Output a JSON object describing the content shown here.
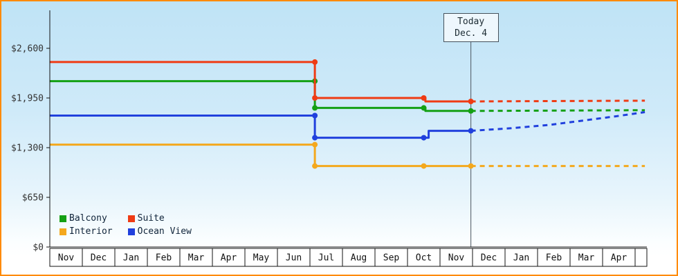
{
  "frame": {
    "border_color": "#ff8a00",
    "background_top": "#bfe3f6",
    "background_bottom": "#ffffff"
  },
  "chart_data": {
    "type": "line",
    "ylim": [
      0,
      2890
    ],
    "y_ticks": [
      {
        "value": 0,
        "label": "$0"
      },
      {
        "value": 650,
        "label": "$650"
      },
      {
        "value": 1300,
        "label": "$1,300"
      },
      {
        "value": 1950,
        "label": "$1,950"
      },
      {
        "value": 2600,
        "label": "$2,600"
      }
    ],
    "x_months": [
      "Nov",
      "Dec",
      "Jan",
      "Feb",
      "Mar",
      "Apr",
      "May",
      "Jun",
      "Jul",
      "Aug",
      "Sep",
      "Oct",
      "Nov",
      "Dec",
      "Jan",
      "Feb",
      "Mar",
      "Apr"
    ],
    "today": {
      "x": 12.95,
      "label_line1": "Today",
      "label_line2": "Dec. 4",
      "line_color": "#4a545e"
    },
    "series": [
      {
        "name": "Balcony",
        "color": "#14a014",
        "solid": [
          [
            0,
            2170
          ],
          [
            8.15,
            2170
          ],
          [
            8.15,
            1820
          ],
          [
            11.55,
            1820
          ],
          [
            11.55,
            1780
          ],
          [
            12.95,
            1780
          ]
        ],
        "dashed": [
          [
            12.95,
            1780
          ],
          [
            18.3,
            1790
          ]
        ],
        "markers": [
          [
            8.15,
            2170
          ],
          [
            8.15,
            1820
          ],
          [
            11.5,
            1820
          ],
          [
            12.95,
            1780
          ]
        ]
      },
      {
        "name": "Suite",
        "color": "#ef3b14",
        "solid": [
          [
            0,
            2420
          ],
          [
            8.15,
            2420
          ],
          [
            8.15,
            1950
          ],
          [
            11.55,
            1950
          ],
          [
            11.55,
            1905
          ],
          [
            12.95,
            1905
          ]
        ],
        "dashed": [
          [
            12.95,
            1905
          ],
          [
            18.3,
            1915
          ]
        ],
        "markers": [
          [
            8.15,
            2420
          ],
          [
            8.15,
            1950
          ],
          [
            11.5,
            1950
          ],
          [
            12.95,
            1905
          ]
        ]
      },
      {
        "name": "Interior",
        "color": "#f4a81d",
        "solid": [
          [
            0,
            1340
          ],
          [
            8.15,
            1340
          ],
          [
            8.15,
            1060
          ],
          [
            12.95,
            1060
          ]
        ],
        "dashed": [
          [
            12.95,
            1060
          ],
          [
            18.3,
            1060
          ]
        ],
        "markers": [
          [
            8.15,
            1340
          ],
          [
            8.15,
            1060
          ],
          [
            11.5,
            1060
          ],
          [
            12.95,
            1060
          ]
        ]
      },
      {
        "name": "Ocean View",
        "color": "#2040dd",
        "solid": [
          [
            0,
            1720
          ],
          [
            8.15,
            1720
          ],
          [
            8.15,
            1430
          ],
          [
            11.65,
            1430
          ],
          [
            11.65,
            1520
          ],
          [
            12.95,
            1520
          ]
        ],
        "dashed": [
          [
            12.95,
            1520
          ],
          [
            14.2,
            1555
          ],
          [
            15.4,
            1600
          ],
          [
            16.5,
            1660
          ],
          [
            17.4,
            1710
          ],
          [
            18.3,
            1765
          ]
        ],
        "markers": [
          [
            8.15,
            1720
          ],
          [
            8.15,
            1430
          ],
          [
            11.5,
            1430
          ],
          [
            12.95,
            1520
          ]
        ]
      }
    ]
  }
}
